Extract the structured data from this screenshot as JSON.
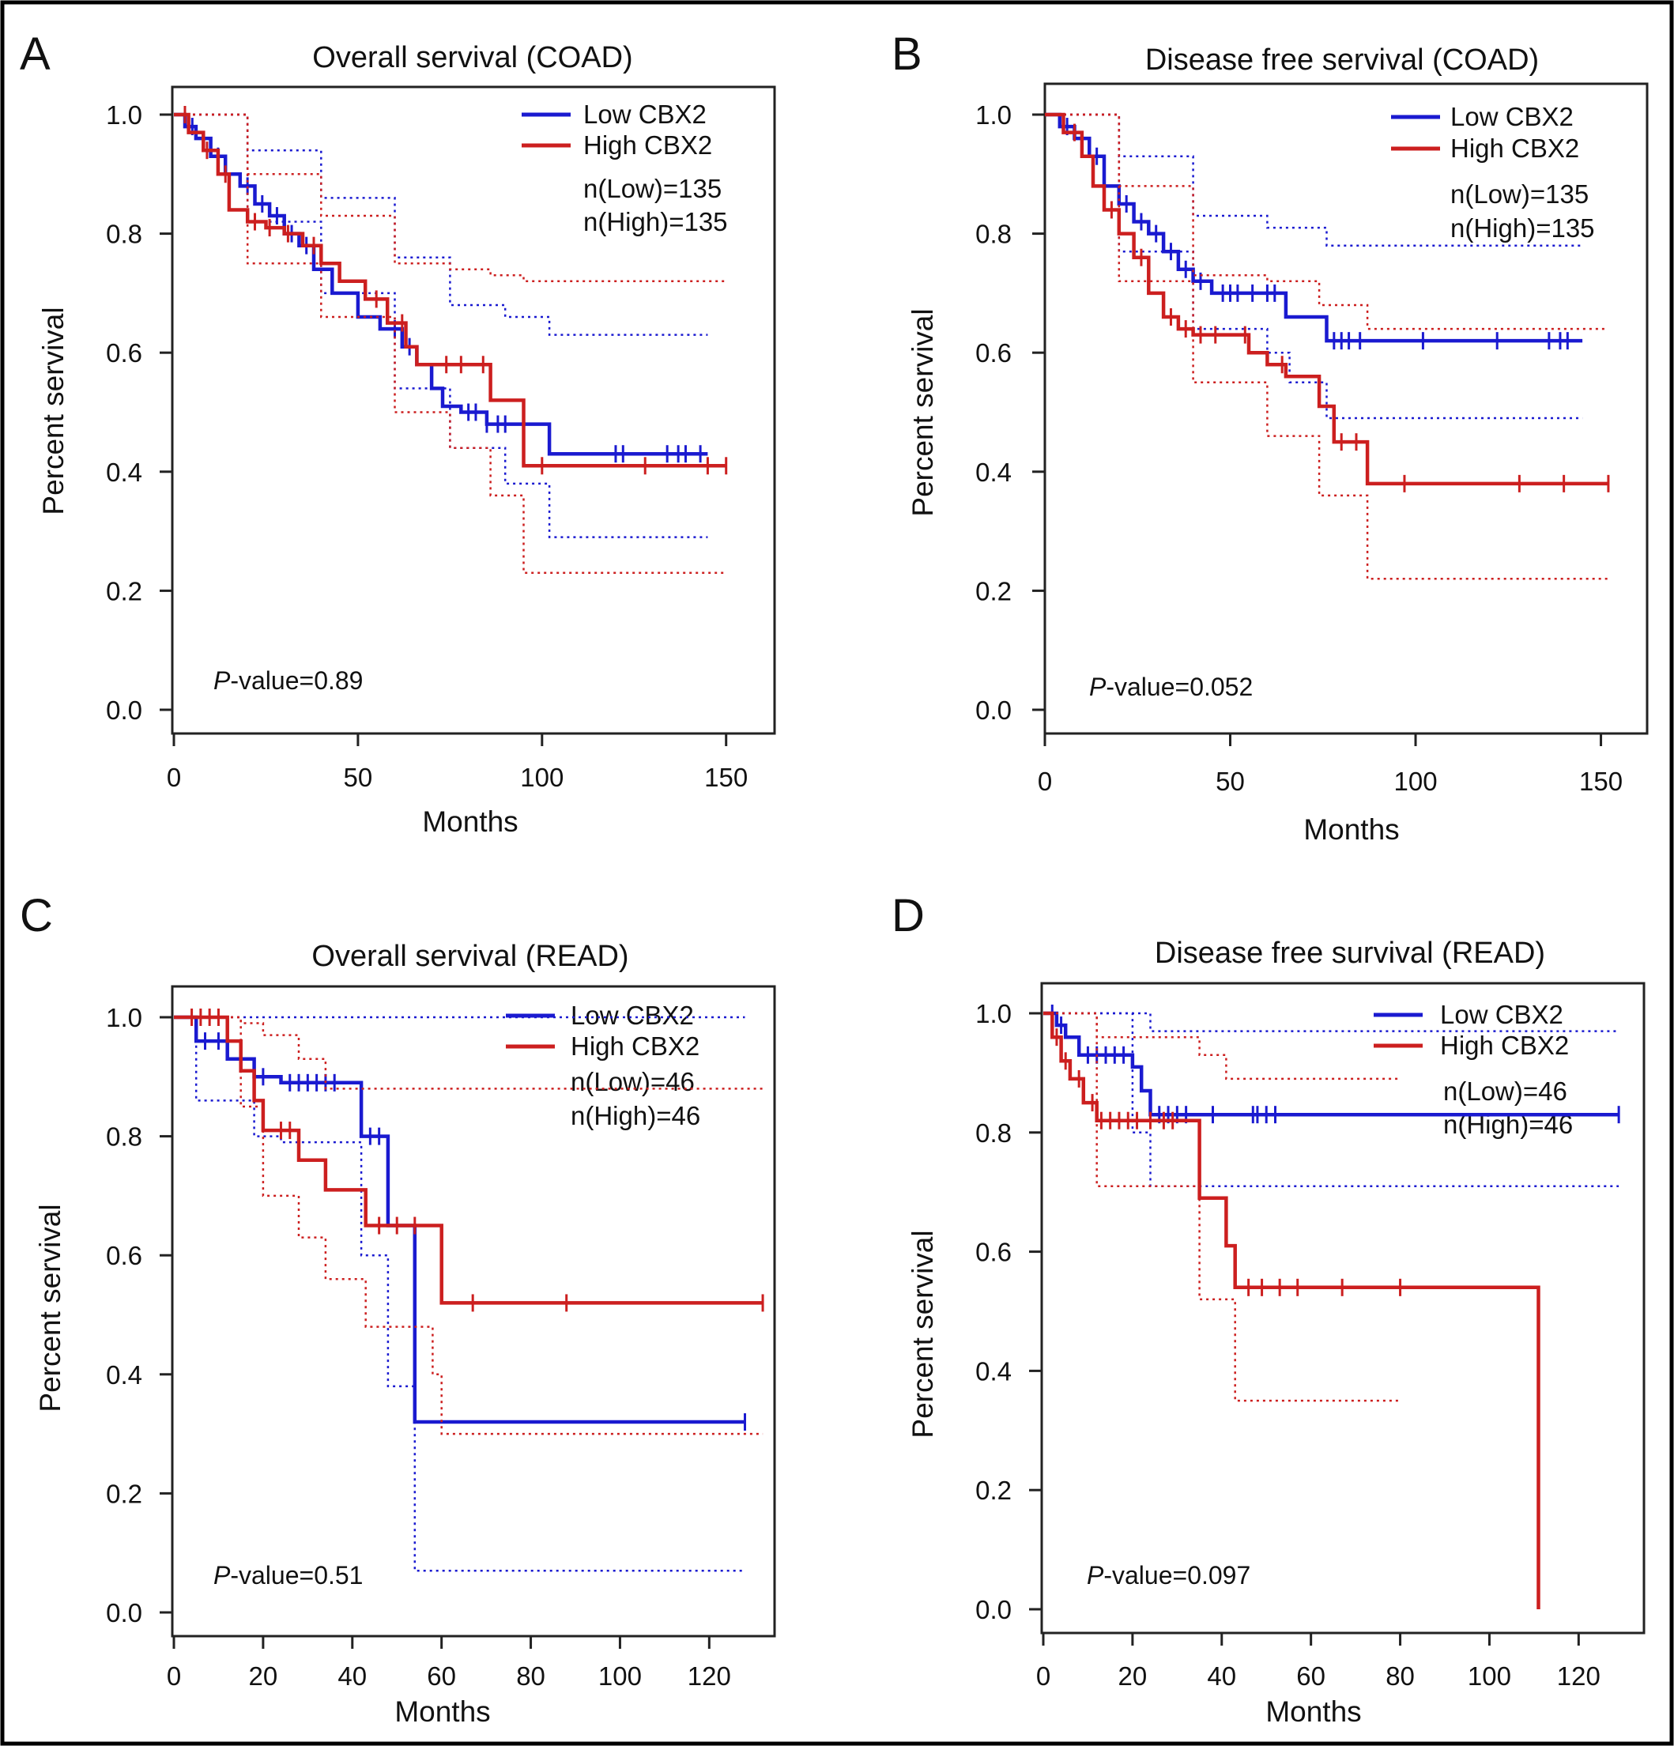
{
  "figure": {
    "border_color": "#000000"
  },
  "colors": {
    "low": "#1a1ad0",
    "high": "#cc1f1f"
  },
  "chart_data": [
    {
      "type": "line",
      "panel_letter": "A",
      "title": "Overall servival (COAD)",
      "xlabel": "Months",
      "ylabel": "Percent servival",
      "xlim": [
        0,
        155
      ],
      "ylim": [
        0,
        1.0
      ],
      "xticks": [
        "0",
        "50",
        "100",
        "150"
      ],
      "xtick_values": [
        0,
        50,
        100,
        150
      ],
      "yticks": [
        "0.0",
        "0.2",
        "0.4",
        "0.6",
        "0.8",
        "1.0"
      ],
      "ytick_values": [
        0,
        0.2,
        0.4,
        0.6,
        0.8,
        1.0
      ],
      "grid": false,
      "legend_position": "top-right",
      "legend": [
        "Low CBX2",
        "High CBX2"
      ],
      "n_text": [
        "n(Low)=135",
        "n(High)=135"
      ],
      "p_value": {
        "prefix": "P",
        "text": "-value=0.89"
      },
      "series": [
        {
          "name": "Low CBX2",
          "color": "#1a1ad0",
          "x": [
            0,
            3,
            6,
            10,
            14,
            18,
            22,
            26,
            30,
            34,
            38,
            43,
            50,
            56,
            62,
            66,
            70,
            73,
            78,
            85,
            100,
            102,
            145
          ],
          "y": [
            1.0,
            0.98,
            0.96,
            0.93,
            0.9,
            0.88,
            0.85,
            0.83,
            0.8,
            0.78,
            0.74,
            0.7,
            0.66,
            0.64,
            0.61,
            0.58,
            0.54,
            0.51,
            0.5,
            0.48,
            0.48,
            0.43,
            0.43
          ],
          "censor_x": [
            5,
            12,
            20,
            24,
            28,
            32,
            36,
            60,
            64,
            80,
            82,
            85,
            88,
            90,
            95,
            120,
            122,
            134,
            137,
            139,
            143
          ],
          "ci_upper": {
            "x": [
              0,
              20,
              40,
              60,
              75,
              90,
              102,
              145
            ],
            "y": [
              1.0,
              0.94,
              0.86,
              0.76,
              0.68,
              0.66,
              0.63,
              0.63
            ]
          },
          "ci_lower": {
            "x": [
              0,
              20,
              40,
              60,
              75,
              90,
              102,
              145
            ],
            "y": [
              1.0,
              0.82,
              0.7,
              0.54,
              0.44,
              0.38,
              0.29,
              0.29
            ]
          }
        },
        {
          "name": "High CBX2",
          "color": "#cc1f1f",
          "x": [
            0,
            4,
            8,
            12,
            15,
            20,
            25,
            30,
            35,
            40,
            45,
            52,
            58,
            63,
            66,
            70,
            86,
            95,
            150
          ],
          "y": [
            1.0,
            0.97,
            0.94,
            0.9,
            0.84,
            0.82,
            0.81,
            0.8,
            0.78,
            0.75,
            0.72,
            0.69,
            0.65,
            0.61,
            0.58,
            0.58,
            0.52,
            0.41,
            0.41
          ],
          "censor_x": [
            3,
            9,
            14,
            22,
            26,
            31,
            38,
            55,
            62,
            74,
            78,
            84,
            100,
            128,
            145,
            150
          ],
          "ci_upper": {
            "x": [
              0,
              20,
              40,
              60,
              75,
              86,
              95,
              150
            ],
            "y": [
              1.0,
              0.9,
              0.83,
              0.75,
              0.74,
              0.73,
              0.72,
              0.72
            ]
          },
          "ci_lower": {
            "x": [
              0,
              20,
              40,
              60,
              75,
              86,
              95,
              150
            ],
            "y": [
              1.0,
              0.75,
              0.66,
              0.5,
              0.44,
              0.36,
              0.23,
              0.23
            ]
          }
        }
      ]
    },
    {
      "type": "line",
      "panel_letter": "B",
      "title": "Disease free servival (COAD)",
      "xlabel": "Months",
      "ylabel": "Percent servival",
      "xlim": [
        0,
        155
      ],
      "ylim": [
        0,
        1.0
      ],
      "xticks": [
        "0",
        "50",
        "100",
        "150"
      ],
      "xtick_values": [
        0,
        50,
        100,
        150
      ],
      "yticks": [
        "0.0",
        "0.2",
        "0.4",
        "0.6",
        "0.8",
        "1.0"
      ],
      "ytick_values": [
        0,
        0.2,
        0.4,
        0.6,
        0.8,
        1.0
      ],
      "grid": false,
      "legend_position": "top-right",
      "legend": [
        "Low CBX2",
        "High CBX2"
      ],
      "n_text": [
        "n(Low)=135",
        "n(High)=135"
      ],
      "p_value": {
        "prefix": "P",
        "text": "-value=0.052"
      },
      "series": [
        {
          "name": "Low CBX2",
          "color": "#1a1ad0",
          "x": [
            0,
            4,
            8,
            12,
            16,
            20,
            24,
            28,
            32,
            36,
            40,
            45,
            65,
            76,
            145
          ],
          "y": [
            1.0,
            0.98,
            0.96,
            0.93,
            0.88,
            0.85,
            0.82,
            0.8,
            0.77,
            0.74,
            0.72,
            0.7,
            0.66,
            0.62,
            0.62
          ],
          "censor_x": [
            6,
            14,
            22,
            26,
            30,
            34,
            38,
            42,
            48,
            50,
            52,
            56,
            60,
            62,
            78,
            80,
            82,
            85,
            102,
            122,
            136,
            139,
            141
          ],
          "ci_upper": {
            "x": [
              0,
              20,
              40,
              60,
              76,
              145
            ],
            "y": [
              1.0,
              0.93,
              0.83,
              0.81,
              0.78,
              0.78
            ]
          },
          "ci_lower": {
            "x": [
              0,
              20,
              40,
              60,
              66,
              76,
              145
            ],
            "y": [
              1.0,
              0.77,
              0.64,
              0.6,
              0.55,
              0.49,
              0.49
            ]
          }
        },
        {
          "name": "High CBX2",
          "color": "#cc1f1f",
          "x": [
            0,
            5,
            10,
            13,
            16,
            20,
            24,
            28,
            32,
            36,
            40,
            50,
            55,
            60,
            65,
            74,
            78,
            87,
            152
          ],
          "y": [
            1.0,
            0.97,
            0.93,
            0.88,
            0.84,
            0.8,
            0.76,
            0.7,
            0.66,
            0.64,
            0.63,
            0.63,
            0.6,
            0.58,
            0.56,
            0.51,
            0.45,
            0.38,
            0.38
          ],
          "censor_x": [
            8,
            18,
            26,
            34,
            38,
            42,
            46,
            54,
            64,
            80,
            84,
            97,
            128,
            140,
            152
          ],
          "ci_upper": {
            "x": [
              0,
              20,
              40,
              60,
              74,
              87,
              152
            ],
            "y": [
              1.0,
              0.88,
              0.73,
              0.72,
              0.68,
              0.64,
              0.64
            ]
          },
          "ci_lower": {
            "x": [
              0,
              20,
              40,
              60,
              74,
              87,
              152
            ],
            "y": [
              1.0,
              0.72,
              0.55,
              0.46,
              0.36,
              0.22,
              0.22
            ]
          }
        }
      ]
    },
    {
      "type": "line",
      "panel_letter": "C",
      "title": "Overall servival (READ)",
      "xlabel": "Months",
      "ylabel": "Percent servival",
      "xlim": [
        0,
        135
      ],
      "ylim": [
        0,
        1.0
      ],
      "xticks": [
        "0",
        "20",
        "40",
        "60",
        "80",
        "100",
        "120"
      ],
      "xtick_values": [
        0,
        20,
        40,
        60,
        80,
        100,
        120
      ],
      "yticks": [
        "0.0",
        "0.2",
        "0.4",
        "0.6",
        "0.8",
        "1.0"
      ],
      "ytick_values": [
        0,
        0.2,
        0.4,
        0.6,
        0.8,
        1.0
      ],
      "grid": false,
      "legend_position": "top-right",
      "legend": [
        "Low CBX2",
        "High CBX2"
      ],
      "n_text": [
        "n(Low)=46",
        "n(High)=46"
      ],
      "p_value": {
        "prefix": "P",
        "text": "-value=0.51"
      },
      "series": [
        {
          "name": "Low CBX2",
          "color": "#1a1ad0",
          "x": [
            0,
            5,
            12,
            18,
            24,
            42,
            48,
            54,
            128
          ],
          "y": [
            1.0,
            0.96,
            0.93,
            0.9,
            0.89,
            0.8,
            0.65,
            0.32,
            0.32
          ],
          "censor_x": [
            7,
            10,
            20,
            26,
            28,
            30,
            32,
            34,
            36,
            44,
            46,
            128
          ],
          "ci_upper": {
            "x": [
              0,
              42,
              48,
              54,
              128
            ],
            "y": [
              1.0,
              1.0,
              1.0,
              1.0,
              1.0
            ]
          },
          "ci_lower": {
            "x": [
              0,
              5,
              18,
              24,
              42,
              48,
              54,
              128
            ],
            "y": [
              1.0,
              0.86,
              0.8,
              0.79,
              0.6,
              0.38,
              0.07,
              0.07
            ]
          }
        },
        {
          "name": "High CBX2",
          "color": "#cc1f1f",
          "x": [
            0,
            12,
            15,
            18,
            20,
            28,
            34,
            43,
            48,
            58,
            60,
            132
          ],
          "y": [
            1.0,
            0.96,
            0.91,
            0.86,
            0.81,
            0.76,
            0.71,
            0.65,
            0.65,
            0.65,
            0.52,
            0.52
          ],
          "censor_x": [
            4,
            6,
            8,
            10,
            24,
            26,
            46,
            50,
            54,
            67,
            88,
            132
          ],
          "ci_upper": {
            "x": [
              0,
              15,
              20,
              28,
              34,
              60,
              132
            ],
            "y": [
              1.0,
              0.99,
              0.97,
              0.93,
              0.88,
              0.88,
              0.88
            ]
          },
          "ci_lower": {
            "x": [
              0,
              15,
              20,
              28,
              34,
              43,
              58,
              60,
              132
            ],
            "y": [
              1.0,
              0.85,
              0.7,
              0.63,
              0.56,
              0.48,
              0.4,
              0.3,
              0.3
            ]
          }
        }
      ]
    },
    {
      "type": "line",
      "panel_letter": "D",
      "title": "Disease free survival (READ)",
      "xlabel": "Months",
      "ylabel": "Percent servival",
      "xlim": [
        0,
        135
      ],
      "ylim": [
        0,
        1.0
      ],
      "xticks": [
        "0",
        "20",
        "40",
        "60",
        "80",
        "100",
        "120"
      ],
      "xtick_values": [
        0,
        20,
        40,
        60,
        80,
        100,
        120
      ],
      "yticks": [
        "0.0",
        "0.2",
        "0.4",
        "0.6",
        "0.8",
        "1.0"
      ],
      "ytick_values": [
        0,
        0.2,
        0.4,
        0.6,
        0.8,
        1.0
      ],
      "grid": false,
      "legend_position": "top-right",
      "legend": [
        "Low CBX2",
        "High CBX2"
      ],
      "n_text": [
        "n(Low)=46",
        "n(High)=46"
      ],
      "p_value": {
        "prefix": "P",
        "text": "-value=0.097"
      },
      "series": [
        {
          "name": "Low CBX2",
          "color": "#1a1ad0",
          "x": [
            0,
            3,
            5,
            8,
            20,
            22,
            24,
            129
          ],
          "y": [
            1.0,
            0.98,
            0.96,
            0.93,
            0.91,
            0.87,
            0.83,
            0.83
          ],
          "censor_x": [
            2,
            4,
            10,
            12,
            14,
            16,
            18,
            26,
            28,
            30,
            32,
            38,
            47,
            48,
            50,
            52,
            129
          ],
          "ci_upper": {
            "x": [
              0,
              20,
              24,
              129
            ],
            "y": [
              1.0,
              1.0,
              0.97,
              0.97
            ]
          },
          "ci_lower": {
            "x": [
              0,
              20,
              24,
              129
            ],
            "y": [
              1.0,
              0.8,
              0.71,
              0.71
            ]
          }
        },
        {
          "name": "High CBX2",
          "color": "#cc1f1f",
          "x": [
            0,
            2,
            4,
            6,
            9,
            12,
            35,
            41,
            43,
            111,
            111
          ],
          "y": [
            1.0,
            0.96,
            0.92,
            0.89,
            0.85,
            0.82,
            0.69,
            0.61,
            0.54,
            0.54,
            0.0
          ],
          "censor_x": [
            3,
            5,
            8,
            11,
            13,
            15,
            17,
            19,
            21,
            24,
            27,
            29,
            46,
            49,
            53,
            57,
            67,
            80
          ],
          "ci_upper": {
            "x": [
              0,
              12,
              35,
              41,
              80
            ],
            "y": [
              1.0,
              0.96,
              0.93,
              0.89,
              0.89
            ]
          },
          "ci_lower": {
            "x": [
              0,
              12,
              35,
              43,
              80
            ],
            "y": [
              1.0,
              0.71,
              0.52,
              0.35,
              0.35
            ]
          }
        }
      ]
    }
  ]
}
